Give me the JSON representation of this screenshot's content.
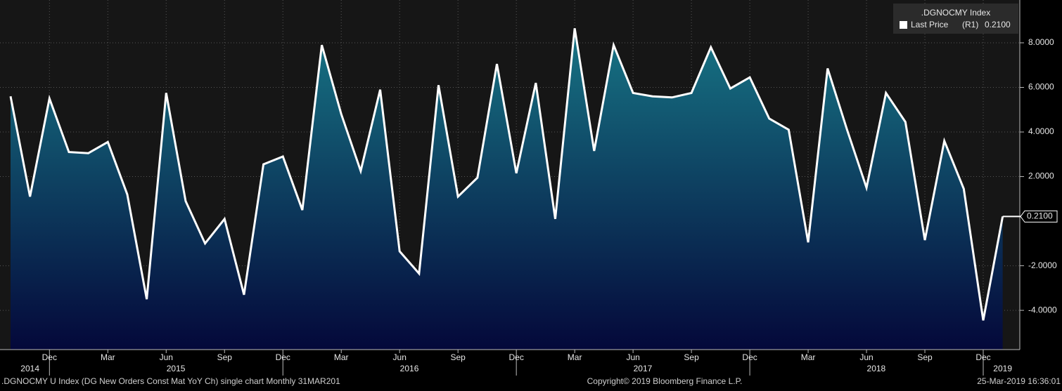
{
  "chart_data": {
    "type": "area",
    "title": ".DGNOCMY Index",
    "series": [
      {
        "name": "Last Price",
        "axis_label": "(R1)",
        "color": "#ffffff",
        "fill_top": "#177585",
        "fill_bottom": "#04083a",
        "values": [
          5.6,
          1.1,
          5.5,
          3.1,
          3.05,
          3.55,
          1.2,
          -3.5,
          5.75,
          0.9,
          -1.0,
          0.1,
          -3.3,
          2.55,
          2.9,
          0.5,
          7.9,
          4.8,
          2.25,
          5.9,
          -1.35,
          -2.35,
          6.1,
          1.1,
          1.95,
          7.05,
          2.15,
          6.2,
          0.1,
          8.65,
          3.15,
          7.9,
          5.75,
          5.6,
          5.55,
          5.75,
          7.8,
          5.95,
          6.45,
          4.6,
          4.1,
          -0.95,
          6.85,
          4.1,
          1.5,
          5.75,
          4.45,
          -0.85,
          3.6,
          1.45,
          -4.45,
          0.21
        ]
      }
    ],
    "last_price": {
      "value": 0.21,
      "label": "0.2100"
    },
    "x": [
      "2014-10",
      "2014-11",
      "2014-12",
      "2015-01",
      "2015-02",
      "2015-03",
      "2015-04",
      "2015-05",
      "2015-06",
      "2015-07",
      "2015-08",
      "2015-09",
      "2015-10",
      "2015-11",
      "2015-12",
      "2016-01",
      "2016-02",
      "2016-03",
      "2016-04",
      "2016-05",
      "2016-06",
      "2016-07",
      "2016-08",
      "2016-09",
      "2016-10",
      "2016-11",
      "2016-12",
      "2017-01",
      "2017-02",
      "2017-03",
      "2017-04",
      "2017-05",
      "2017-06",
      "2017-07",
      "2017-08",
      "2017-09",
      "2017-10",
      "2017-11",
      "2017-12",
      "2018-01",
      "2018-02",
      "2018-03",
      "2018-04",
      "2018-05",
      "2018-06",
      "2018-07",
      "2018-08",
      "2018-09",
      "2018-10",
      "2018-11",
      "2018-12",
      "2019-01"
    ],
    "xticks": [
      {
        "value": "2014-12",
        "label": "Dec"
      },
      {
        "value": "2015-03",
        "label": "Mar"
      },
      {
        "value": "2015-06",
        "label": "Jun"
      },
      {
        "value": "2015-09",
        "label": "Sep"
      },
      {
        "value": "2015-12",
        "label": "Dec"
      },
      {
        "value": "2016-03",
        "label": "Mar"
      },
      {
        "value": "2016-06",
        "label": "Jun"
      },
      {
        "value": "2016-09",
        "label": "Sep"
      },
      {
        "value": "2016-12",
        "label": "Dec"
      },
      {
        "value": "2017-03",
        "label": "Mar"
      },
      {
        "value": "2017-06",
        "label": "Jun"
      },
      {
        "value": "2017-09",
        "label": "Sep"
      },
      {
        "value": "2017-12",
        "label": "Dec"
      },
      {
        "value": "2018-03",
        "label": "Mar"
      },
      {
        "value": "2018-06",
        "label": "Jun"
      },
      {
        "value": "2018-09",
        "label": "Sep"
      },
      {
        "value": "2018-12",
        "label": "Dec"
      }
    ],
    "years": [
      "2014",
      "2015",
      "2016",
      "2017",
      "2018",
      "2019"
    ],
    "ylim": [
      -5.76,
      9.92
    ],
    "yticks": [
      {
        "value": 8,
        "label": "8.0000"
      },
      {
        "value": 6,
        "label": "6.0000"
      },
      {
        "value": 4,
        "label": "4.0000"
      },
      {
        "value": 2,
        "label": "2.0000"
      },
      {
        "value": -2,
        "label": "-2.0000"
      },
      {
        "value": -4,
        "label": "-4.0000"
      }
    ],
    "grid": true,
    "footer": {
      "left": ".DGNOCMY U Index (DG New Orders Const Mat YoY Ch) single chart  Monthly 31MAR201",
      "center": "Copyright© 2019 Bloomberg Finance L.P.",
      "right": "25-Mar-2019 16:36:01"
    }
  }
}
